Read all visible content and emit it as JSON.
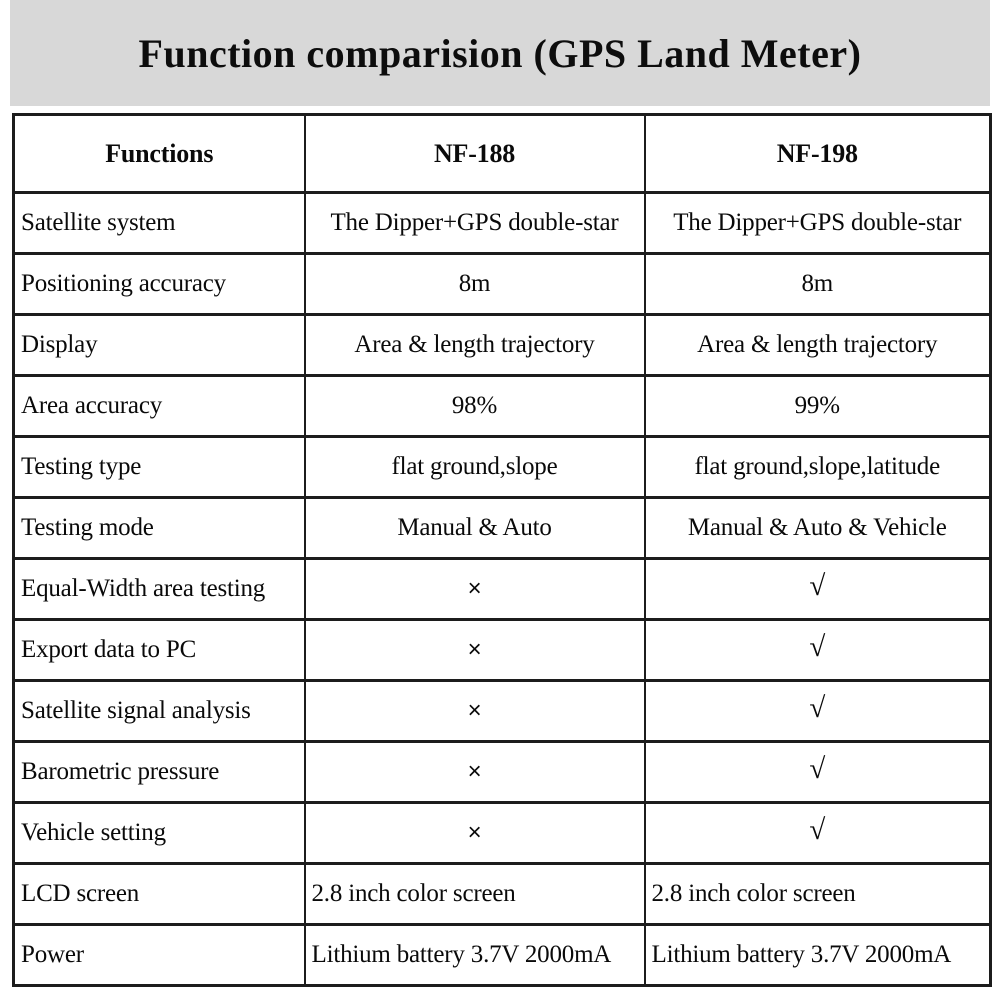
{
  "title": "Function comparision (GPS Land Meter)",
  "colors": {
    "title_band_bg": "#d8d8d8",
    "table_border": "#1c1c1c",
    "text": "#0a0a0a",
    "page_bg": "#ffffff"
  },
  "symbols": {
    "supported": "√",
    "not_supported": "×"
  },
  "table": {
    "columns": [
      "Functions",
      "NF-188",
      "NF-198"
    ],
    "rows": [
      {
        "label": "Satellite system",
        "nf188": "The Dipper+GPS double-star",
        "nf198": "The Dipper+GPS double-star",
        "value_align": "center"
      },
      {
        "label": "Positioning accuracy",
        "nf188": "8m",
        "nf198": "8m",
        "value_align": "center"
      },
      {
        "label": "Display",
        "nf188": "Area & length trajectory",
        "nf198": "Area & length trajectory",
        "value_align": "center"
      },
      {
        "label": "Area accuracy",
        "nf188": "98%",
        "nf198": "99%",
        "value_align": "center"
      },
      {
        "label": "Testing type",
        "nf188": "flat ground,slope",
        "nf198": "flat ground,slope,latitude",
        "value_align": "center"
      },
      {
        "label": "Testing mode",
        "nf188": "Manual & Auto",
        "nf198": "Manual & Auto & Vehicle",
        "value_align": "center"
      },
      {
        "label": "Equal-Width area testing",
        "nf188": "×",
        "nf198": "√",
        "value_align": "center"
      },
      {
        "label": "Export data to PC",
        "nf188": "×",
        "nf198": "√",
        "value_align": "center"
      },
      {
        "label": "Satellite signal analysis",
        "nf188": "×",
        "nf198": "√",
        "value_align": "center"
      },
      {
        "label": "Barometric pressure",
        "nf188": "×",
        "nf198": "√",
        "value_align": "center"
      },
      {
        "label": "Vehicle setting",
        "nf188": "×",
        "nf198": "√",
        "value_align": "center"
      },
      {
        "label": "LCD screen",
        "nf188": "2.8 inch color screen",
        "nf198": "2.8 inch color screen",
        "value_align": "left"
      },
      {
        "label": "Power",
        "nf188": "Lithium battery 3.7V 2000mA",
        "nf198": "Lithium battery 3.7V 2000mA",
        "value_align": "left"
      }
    ]
  }
}
